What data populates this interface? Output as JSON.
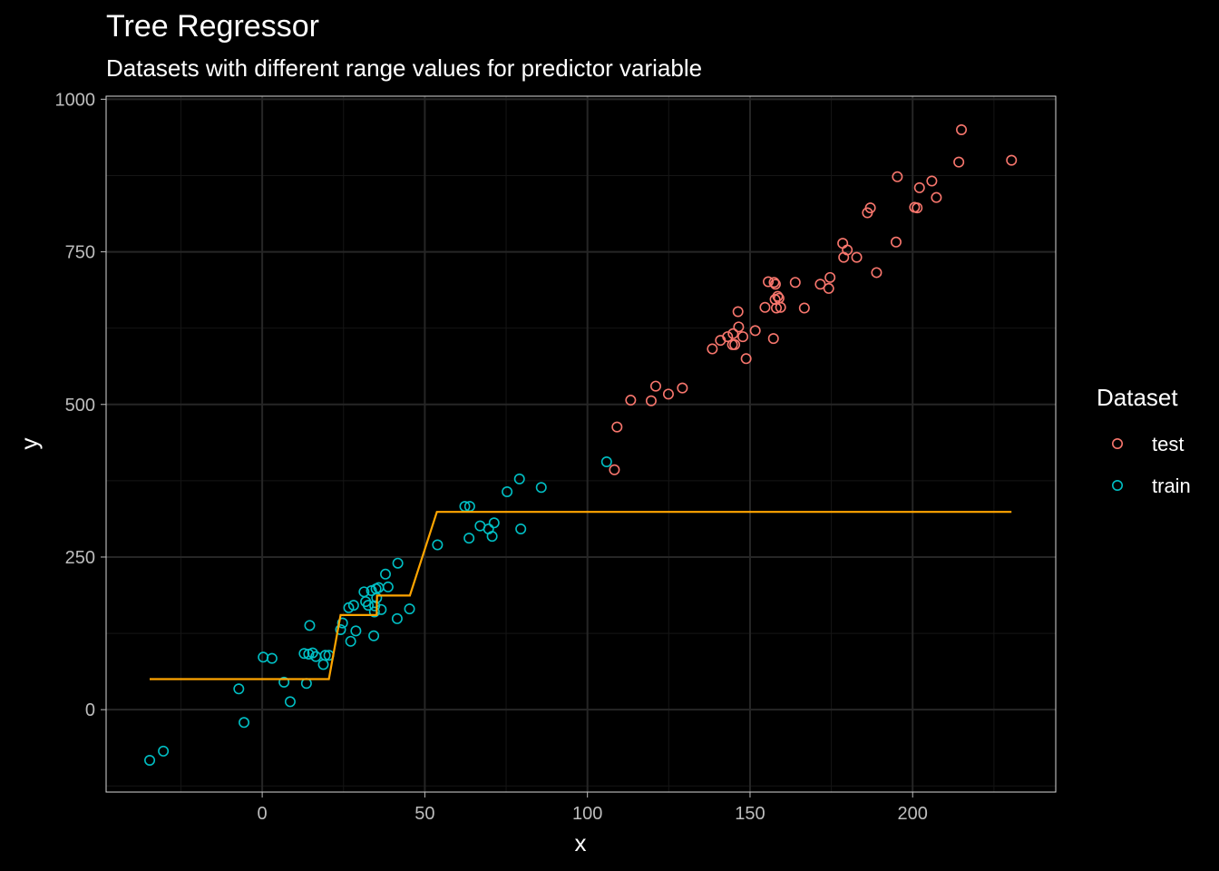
{
  "chart_data": {
    "type": "scatter",
    "title": "Tree Regressor",
    "subtitle": "Datasets with different range values for predictor variable",
    "xlabel": "x",
    "ylabel": "y",
    "xlim": [
      -48,
      244
    ],
    "ylim": [
      -135,
      1005
    ],
    "x_ticks": [
      0,
      50,
      100,
      150,
      200
    ],
    "y_ticks": [
      0,
      250,
      500,
      750,
      1000
    ],
    "x_tick_labels": [
      "0",
      "50",
      "100",
      "150",
      "200"
    ],
    "y_tick_labels": [
      "0",
      "250",
      "500",
      "750",
      "1000"
    ],
    "grid": true,
    "legend": {
      "title": "Dataset",
      "position": "right",
      "items": [
        {
          "label": "test",
          "color": "#F8766D"
        },
        {
          "label": "train",
          "color": "#00BFC4"
        }
      ]
    },
    "series": [
      {
        "name": "test",
        "kind": "points",
        "color": "#F8766D",
        "x": [
          108.3,
          109.1,
          113.3,
          119.6,
          121.0,
          124.9,
          129.2,
          138.4,
          140.9,
          143.1,
          144.8,
          144.6,
          145.3,
          146.5,
          146.3,
          147.8,
          148.8,
          151.6,
          154.6,
          155.6,
          157.2,
          157.7,
          157.8,
          157.4,
          158.1,
          158.5,
          159.4,
          158.9,
          163.9,
          166.7,
          171.6,
          174.2,
          174.6,
          178.5,
          178.8,
          179.9,
          182.8,
          188.9,
          186.1,
          187.0,
          194.9,
          195.3,
          200.6,
          201.4,
          202.1,
          205.9,
          207.3,
          214.2,
          215.0,
          230.4
        ],
        "y": [
          393,
          463,
          507,
          506,
          530,
          517,
          527,
          591,
          605,
          611,
          616,
          598,
          598,
          627,
          652,
          611,
          575,
          621,
          659,
          701,
          608,
          672,
          697,
          700,
          658,
          677,
          659,
          674,
          700,
          658,
          697,
          690,
          708,
          764,
          741,
          753,
          741,
          716,
          814,
          822,
          766,
          873,
          823,
          822,
          855,
          866,
          839,
          897,
          950,
          900
        ]
      },
      {
        "name": "train",
        "kind": "points",
        "color": "#00BFC4",
        "x": [
          -34.6,
          -30.4,
          -7.2,
          -5.6,
          0.3,
          3.0,
          6.7,
          8.6,
          12.9,
          13.6,
          14.3,
          14.6,
          15.5,
          16.5,
          18.8,
          19.4,
          20.5,
          24.1,
          24.7,
          26.6,
          27.2,
          28.1,
          28.8,
          31.3,
          31.8,
          32.6,
          33.6,
          34.3,
          34.5,
          34.6,
          35.0,
          35.2,
          35.8,
          36.6,
          37.9,
          38.7,
          41.5,
          41.7,
          45.3,
          53.9,
          62.3,
          63.6,
          63.8,
          67.0,
          69.6,
          70.7,
          71.3,
          75.3,
          79.1,
          79.5,
          85.8,
          105.9
        ],
        "y": [
          -83,
          -68,
          34,
          -21,
          86,
          84,
          45,
          13,
          92,
          43,
          91,
          138,
          93,
          87,
          74,
          89,
          89,
          131,
          142,
          167,
          112,
          171,
          129,
          193,
          177,
          171,
          195,
          121,
          160,
          170,
          198,
          183,
          200,
          164,
          222,
          201,
          149,
          240,
          165,
          270,
          333,
          281,
          333,
          301,
          296,
          284,
          306,
          357,
          378,
          296,
          364,
          406
        ]
      },
      {
        "name": "",
        "kind": "line",
        "color": "#FFA500",
        "x": [
          -34.6,
          20.5,
          24.1,
          35.2,
          35.3,
          45.4,
          53.7,
          230.4
        ],
        "y": [
          50,
          50,
          155,
          155,
          187,
          187,
          324,
          324
        ]
      }
    ]
  }
}
